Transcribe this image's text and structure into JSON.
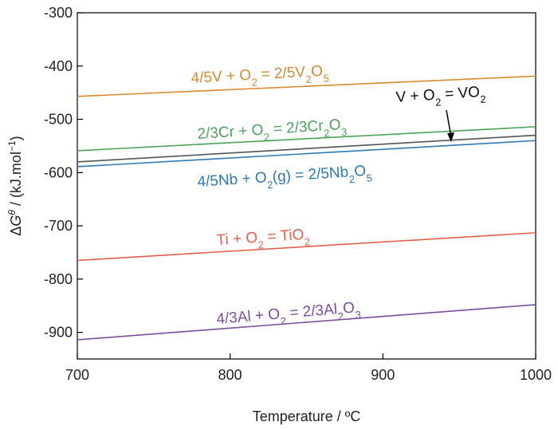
{
  "chart_data": {
    "type": "line",
    "xlabel": "Temperature / ºC",
    "ylabel": "ΔGθ / (kJ.mol⁻¹)",
    "ylabel_parts": {
      "delta": "Δ",
      "G": "G",
      "theta": "θ",
      "rest": " / (kJ.mol",
      "sup": "−1",
      "close": ")"
    },
    "xlim": [
      700,
      1000
    ],
    "ylim": [
      -950,
      -300
    ],
    "x_ticks": [
      700,
      800,
      900,
      1000
    ],
    "y_ticks": [
      -300,
      -400,
      -500,
      -600,
      -700,
      -800,
      -900
    ],
    "grid": false,
    "legend": "none",
    "series": [
      {
        "name": "4/5V + O2 = 2/5V2O5",
        "label_parts": [
          [
            "4/5V + O",
            ""
          ],
          [
            "2",
            "sub"
          ],
          [
            " = 2/5V",
            ""
          ],
          [
            "2",
            "sub"
          ],
          [
            "O",
            ""
          ],
          [
            "5",
            "sub"
          ]
        ],
        "color": "#D88A2E",
        "x": [
          700,
          1000
        ],
        "y": [
          -457,
          -419
        ]
      },
      {
        "name": "2/3Cr + O2 = 2/3Cr2O3",
        "label_parts": [
          [
            "2/3Cr + O",
            ""
          ],
          [
            "2",
            "sub"
          ],
          [
            " = 2/3Cr",
            ""
          ],
          [
            "2",
            "sub"
          ],
          [
            "O",
            ""
          ],
          [
            "3",
            "sub"
          ]
        ],
        "color": "#4CA35A",
        "x": [
          700,
          1000
        ],
        "y": [
          -559,
          -514
        ]
      },
      {
        "name": "V + O2 = VO2",
        "label_parts": [
          [
            "V + O",
            ""
          ],
          [
            "2",
            "sub"
          ],
          [
            " = VO",
            ""
          ],
          [
            "2",
            "sub"
          ]
        ],
        "color": "#555555",
        "x": [
          700,
          1000
        ],
        "y": [
          -580,
          -530
        ]
      },
      {
        "name": "4/5Nb + O2(g) = 2/5Nb2O5",
        "label_parts": [
          [
            "4/5Nb + O",
            ""
          ],
          [
            "2",
            "sub"
          ],
          [
            "(g) = 2/5Nb",
            ""
          ],
          [
            "2",
            "sub"
          ],
          [
            "O",
            ""
          ],
          [
            "5",
            "sub"
          ]
        ],
        "color": "#2F79B5",
        "x": [
          700,
          1000
        ],
        "y": [
          -589,
          -540
        ]
      },
      {
        "name": "Ti + O2 = TiO2",
        "label_parts": [
          [
            "Ti + O",
            ""
          ],
          [
            "2",
            "sub"
          ],
          [
            " = TiO",
            ""
          ],
          [
            "2",
            "sub"
          ]
        ],
        "color": "#E2604A",
        "x": [
          700,
          1000
        ],
        "y": [
          -765,
          -713
        ]
      },
      {
        "name": "4/3Al + O2 = 2/3Al2O3",
        "label_parts": [
          [
            "4/3Al + O",
            ""
          ],
          [
            "2",
            "sub"
          ],
          [
            " = 2/3Al",
            ""
          ],
          [
            "2",
            "sub"
          ],
          [
            "O",
            ""
          ],
          [
            "3",
            "sub"
          ]
        ],
        "color": "#7B4E9E",
        "x": [
          700,
          1000
        ],
        "y": [
          -914,
          -848
        ]
      }
    ]
  }
}
